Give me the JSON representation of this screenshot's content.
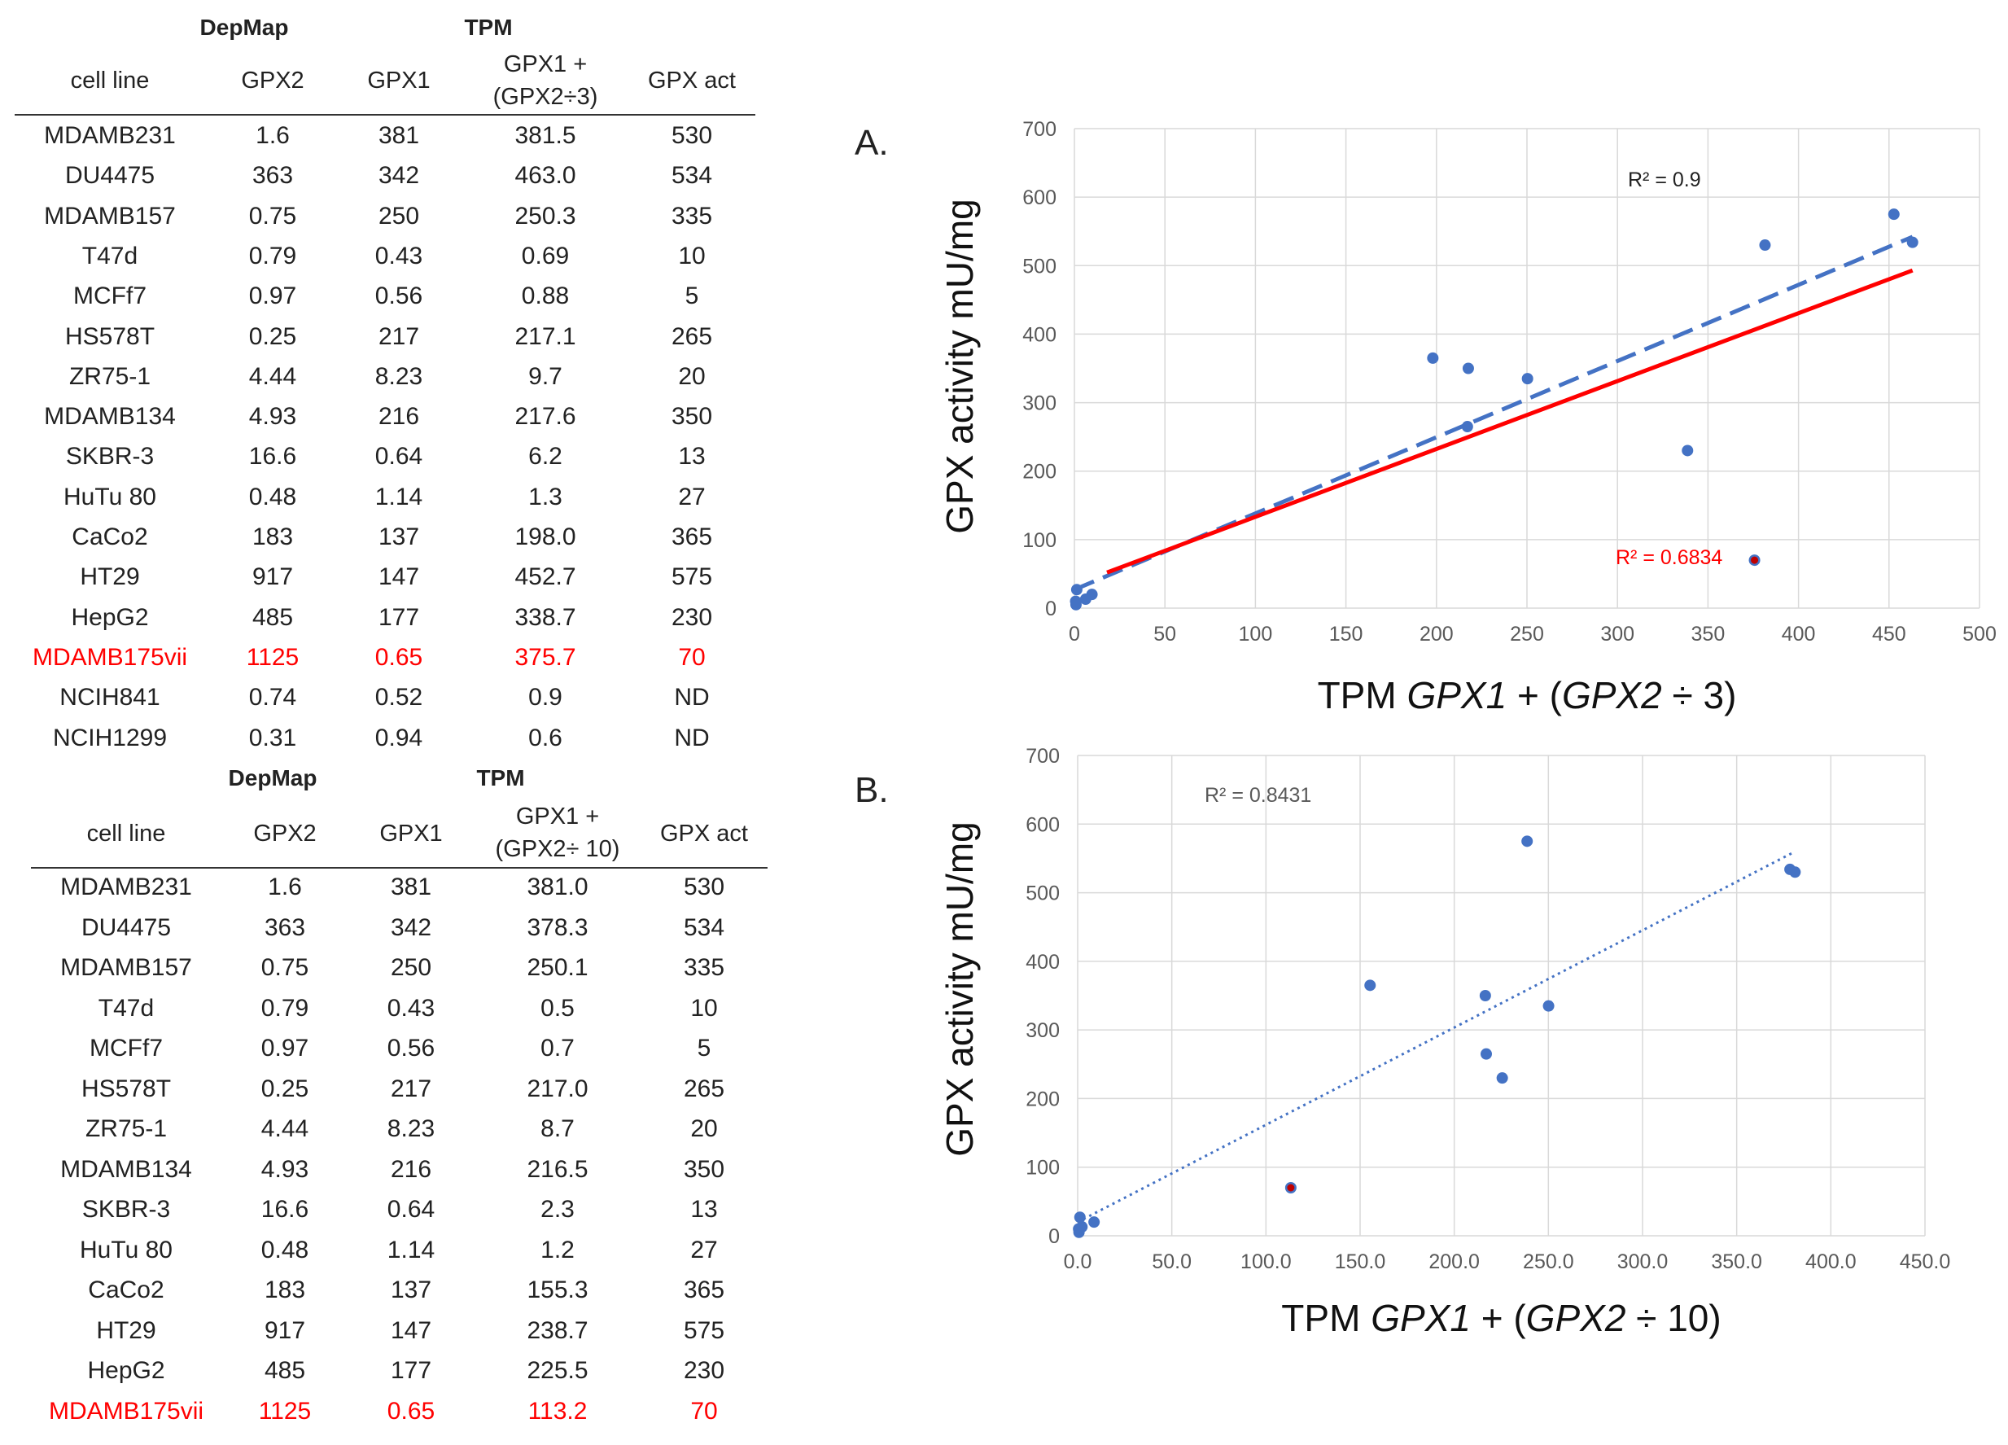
{
  "tables": [
    {
      "group_labels": [
        "DepMap",
        "TPM"
      ],
      "headers": [
        "cell line",
        "GPX2",
        "GPX1",
        "GPX1 +",
        "(GPX2÷3)",
        "GPX act"
      ],
      "rows": [
        [
          "MDAMB231",
          "1.6",
          "381",
          "381.5",
          "530"
        ],
        [
          "DU4475",
          "363",
          "342",
          "463.0",
          "534"
        ],
        [
          "MDAMB157",
          "0.75",
          "250",
          "250.3",
          "335"
        ],
        [
          "T47d",
          "0.79",
          "0.43",
          "0.69",
          "10"
        ],
        [
          "MCFf7",
          "0.97",
          "0.56",
          "0.88",
          "5"
        ],
        [
          "HS578T",
          "0.25",
          "217",
          "217.1",
          "265"
        ],
        [
          "ZR75-1",
          "4.44",
          "8.23",
          "9.7",
          "20"
        ],
        [
          "MDAMB134",
          "4.93",
          "216",
          "217.6",
          "350"
        ],
        [
          "SKBR-3",
          "16.6",
          "0.64",
          "6.2",
          "13"
        ],
        [
          "HuTu 80",
          "0.48",
          "1.14",
          "1.3",
          "27"
        ],
        [
          "CaCo2",
          "183",
          "137",
          "198.0",
          "365"
        ],
        [
          "HT29",
          "917",
          "147",
          "452.7",
          "575"
        ],
        [
          "HepG2",
          "485",
          "177",
          "338.7",
          "230"
        ],
        [
          "MDAMB175vii",
          "1125",
          "0.65",
          "375.7",
          "70"
        ],
        [
          "NCIH841",
          "0.74",
          "0.52",
          "0.9",
          "ND"
        ],
        [
          "NCIH1299",
          "0.31",
          "0.94",
          "0.6",
          "ND"
        ]
      ],
      "highlight_row": "MDAMB175vii"
    },
    {
      "group_labels": [
        "DepMap",
        "TPM"
      ],
      "headers": [
        "cell line",
        "GPX2",
        "GPX1",
        "GPX1 +",
        "(GPX2÷ 10)",
        "GPX act"
      ],
      "rows": [
        [
          "MDAMB231",
          "1.6",
          "381",
          "381.0",
          "530"
        ],
        [
          "DU4475",
          "363",
          "342",
          "378.3",
          "534"
        ],
        [
          "MDAMB157",
          "0.75",
          "250",
          "250.1",
          "335"
        ],
        [
          "T47d",
          "0.79",
          "0.43",
          "0.5",
          "10"
        ],
        [
          "MCFf7",
          "0.97",
          "0.56",
          "0.7",
          "5"
        ],
        [
          "HS578T",
          "0.25",
          "217",
          "217.0",
          "265"
        ],
        [
          "ZR75-1",
          "4.44",
          "8.23",
          "8.7",
          "20"
        ],
        [
          "MDAMB134",
          "4.93",
          "216",
          "216.5",
          "350"
        ],
        [
          "SKBR-3",
          "16.6",
          "0.64",
          "2.3",
          "13"
        ],
        [
          "HuTu 80",
          "0.48",
          "1.14",
          "1.2",
          "27"
        ],
        [
          "CaCo2",
          "183",
          "137",
          "155.3",
          "365"
        ],
        [
          "HT29",
          "917",
          "147",
          "238.7",
          "575"
        ],
        [
          "HepG2",
          "485",
          "177",
          "225.5",
          "230"
        ],
        [
          "MDAMB175vii",
          "1125",
          "0.65",
          "113.2",
          "70"
        ]
      ],
      "highlight_row": "MDAMB175vii"
    }
  ],
  "chart_data": [
    {
      "type": "scatter",
      "panel_label": "A.",
      "xlabel_prefix": "TPM ",
      "xlabel_gene1": "GPX1",
      "xlabel_mid": " + (",
      "xlabel_gene2": "GPX2",
      "xlabel_suffix": " ÷ 3)",
      "ylabel": "GPX activity mU/mg",
      "xlim": [
        0,
        500
      ],
      "ylim": [
        0,
        700
      ],
      "xticks": [
        "0",
        "50",
        "100",
        "150",
        "200",
        "250",
        "300",
        "350",
        "400",
        "450",
        "500"
      ],
      "yticks": [
        "0",
        "100",
        "200",
        "300",
        "400",
        "500",
        "600",
        "700"
      ],
      "grid": true,
      "series": [
        {
          "name": "cell lines",
          "color": "#4472c4",
          "points": [
            [
              0.69,
              10
            ],
            [
              0.88,
              5
            ],
            [
              9.7,
              20
            ],
            [
              6.2,
              13
            ],
            [
              1.3,
              27
            ],
            [
              381.5,
              530
            ],
            [
              463.0,
              534
            ],
            [
              250.3,
              335
            ],
            [
              217.1,
              265
            ],
            [
              217.6,
              350
            ],
            [
              198.0,
              365
            ],
            [
              452.7,
              575
            ],
            [
              338.7,
              230
            ]
          ]
        },
        {
          "name": "MDAMB175vii",
          "color": "#c00000",
          "points": [
            [
              375.7,
              70
            ]
          ]
        }
      ],
      "trendlines": [
        {
          "style": "dashed",
          "color": "#4472c4",
          "x": [
            0,
            463
          ],
          "y": [
            27,
            542
          ],
          "r2_label": "R² = 0.9",
          "r2_color": "#222222"
        },
        {
          "style": "solid",
          "color": "#ff0000",
          "x": [
            18,
            463
          ],
          "y": [
            52,
            493
          ],
          "r2_label": "R² = 0.6834",
          "r2_color": "#ff0000"
        }
      ]
    },
    {
      "type": "scatter",
      "panel_label": "B.",
      "xlabel_prefix": "TPM ",
      "xlabel_gene1": "GPX1",
      "xlabel_mid": " + (",
      "xlabel_gene2": "GPX2",
      "xlabel_suffix": " ÷ 10)",
      "ylabel": "GPX activity mU/mg",
      "xlim": [
        0,
        450
      ],
      "ylim": [
        0,
        700
      ],
      "xticks": [
        "0.0",
        "50.0",
        "100.0",
        "150.0",
        "200.0",
        "250.0",
        "300.0",
        "350.0",
        "400.0",
        "450.0"
      ],
      "yticks": [
        "0",
        "100",
        "200",
        "300",
        "400",
        "500",
        "600",
        "700"
      ],
      "grid": true,
      "series": [
        {
          "name": "cell lines",
          "color": "#4472c4",
          "points": [
            [
              0.5,
              10
            ],
            [
              0.7,
              5
            ],
            [
              8.7,
              20
            ],
            [
              2.3,
              13
            ],
            [
              1.2,
              27
            ],
            [
              381.0,
              530
            ],
            [
              378.3,
              534
            ],
            [
              250.1,
              335
            ],
            [
              217.0,
              265
            ],
            [
              216.5,
              350
            ],
            [
              155.3,
              365
            ],
            [
              238.7,
              575
            ],
            [
              225.5,
              230
            ]
          ]
        },
        {
          "name": "MDAMB175vii",
          "color": "#c00000",
          "points": [
            [
              113.2,
              70
            ]
          ]
        }
      ],
      "trendlines": [
        {
          "style": "dotted",
          "color": "#4472c4",
          "x": [
            0,
            381
          ],
          "y": [
            20,
            560
          ],
          "r2_label": "R² = 0.8431",
          "r2_color": "#595959"
        }
      ]
    }
  ]
}
